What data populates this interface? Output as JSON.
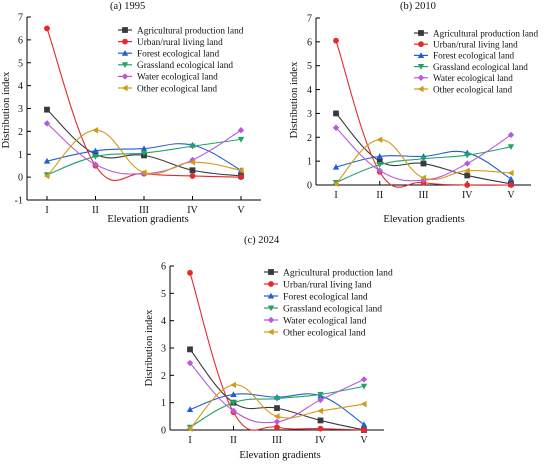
{
  "colors": {
    "agricultural": "#3a3a3a",
    "urban": "#e8292b",
    "forest": "#1f5fd0",
    "grassland": "#23a36a",
    "water": "#b55bdb",
    "other": "#d19a18"
  },
  "chart_data": [
    {
      "type": "line",
      "title": "(a) 1995",
      "xlabel": "Elevation gradients",
      "ylabel": "Distribution index",
      "categories": [
        "I",
        "II",
        "III",
        "IV",
        "V"
      ],
      "ylim": [
        -1,
        7
      ],
      "yticks": [
        "-1",
        "0",
        "1",
        "2",
        "3",
        "4",
        "5",
        "6",
        "7"
      ],
      "legend_position": "top-right",
      "series": [
        {
          "name": "Agricultural production land",
          "color_key": "agricultural",
          "marker": "square",
          "values": [
            2.95,
            1.0,
            0.95,
            0.3,
            0.05
          ]
        },
        {
          "name": "Urban/rural living land",
          "color_key": "urban",
          "marker": "circle",
          "values": [
            6.5,
            0.5,
            0.15,
            0.05,
            0.0
          ]
        },
        {
          "name": "Forest ecological land",
          "color_key": "forest",
          "marker": "triangle-up",
          "values": [
            0.7,
            1.15,
            1.25,
            1.4,
            0.3
          ]
        },
        {
          "name": "Grassland ecological land",
          "color_key": "grassland",
          "marker": "triangle-down",
          "values": [
            0.1,
            0.9,
            1.05,
            1.35,
            1.65
          ]
        },
        {
          "name": "Water ecological land",
          "color_key": "water",
          "marker": "diamond",
          "values": [
            2.35,
            0.55,
            0.15,
            0.75,
            2.05
          ]
        },
        {
          "name": "Other ecological land",
          "color_key": "other",
          "marker": "triangle-left",
          "values": [
            0.05,
            2.05,
            0.2,
            0.65,
            0.3
          ]
        }
      ]
    },
    {
      "type": "line",
      "title": "(b) 2010",
      "xlabel": "Elevation gradients",
      "ylabel": "Distribution index",
      "categories": [
        "I",
        "II",
        "III",
        "IV",
        "V"
      ],
      "ylim": [
        0,
        7
      ],
      "yticks": [
        "0",
        "1",
        "2",
        "3",
        "4",
        "5",
        "6",
        "7"
      ],
      "legend_position": "top-right",
      "series": [
        {
          "name": "Agricultural production land",
          "color_key": "agricultural",
          "marker": "square",
          "values": [
            3.0,
            1.0,
            0.9,
            0.4,
            0.05
          ]
        },
        {
          "name": "Urban/rural living land",
          "color_key": "urban",
          "marker": "circle",
          "values": [
            6.05,
            0.55,
            0.1,
            0.0,
            0.0
          ]
        },
        {
          "name": "Forest ecological land",
          "color_key": "forest",
          "marker": "triangle-up",
          "values": [
            0.75,
            1.2,
            1.2,
            1.35,
            0.25
          ]
        },
        {
          "name": "Grassland ecological land",
          "color_key": "grassland",
          "marker": "triangle-down",
          "values": [
            0.1,
            0.85,
            1.1,
            1.25,
            1.6
          ]
        },
        {
          "name": "Water ecological land",
          "color_key": "water",
          "marker": "diamond",
          "values": [
            2.4,
            0.6,
            0.2,
            0.9,
            2.1
          ]
        },
        {
          "name": "Other ecological land",
          "color_key": "other",
          "marker": "triangle-left",
          "values": [
            0.05,
            1.9,
            0.3,
            0.6,
            0.5
          ]
        }
      ]
    },
    {
      "type": "line",
      "title": "(c) 2024",
      "xlabel": "Elevation gradients",
      "ylabel": "Distribution index",
      "categories": [
        "I",
        "II",
        "III",
        "IV",
        "V"
      ],
      "ylim": [
        0,
        6
      ],
      "yticks": [
        "0",
        "1",
        "2",
        "3",
        "4",
        "5",
        "6"
      ],
      "legend_position": "top-right",
      "series": [
        {
          "name": "Agricultural production land",
          "color_key": "agricultural",
          "marker": "square",
          "values": [
            2.95,
            1.0,
            0.8,
            0.35,
            0.0
          ]
        },
        {
          "name": "Urban/rural living land",
          "color_key": "urban",
          "marker": "circle",
          "values": [
            5.75,
            0.65,
            0.1,
            0.05,
            0.0
          ]
        },
        {
          "name": "Forest ecological land",
          "color_key": "forest",
          "marker": "triangle-up",
          "values": [
            0.75,
            1.3,
            1.2,
            1.25,
            0.2
          ]
        },
        {
          "name": "Grassland ecological land",
          "color_key": "grassland",
          "marker": "triangle-down",
          "values": [
            0.1,
            1.0,
            1.15,
            1.3,
            1.6
          ]
        },
        {
          "name": "Water ecological land",
          "color_key": "water",
          "marker": "diamond",
          "values": [
            2.45,
            0.7,
            0.3,
            1.1,
            1.85
          ]
        },
        {
          "name": "Other ecological land",
          "color_key": "other",
          "marker": "triangle-left",
          "values": [
            0.05,
            1.65,
            0.5,
            0.7,
            0.95
          ]
        }
      ]
    }
  ]
}
